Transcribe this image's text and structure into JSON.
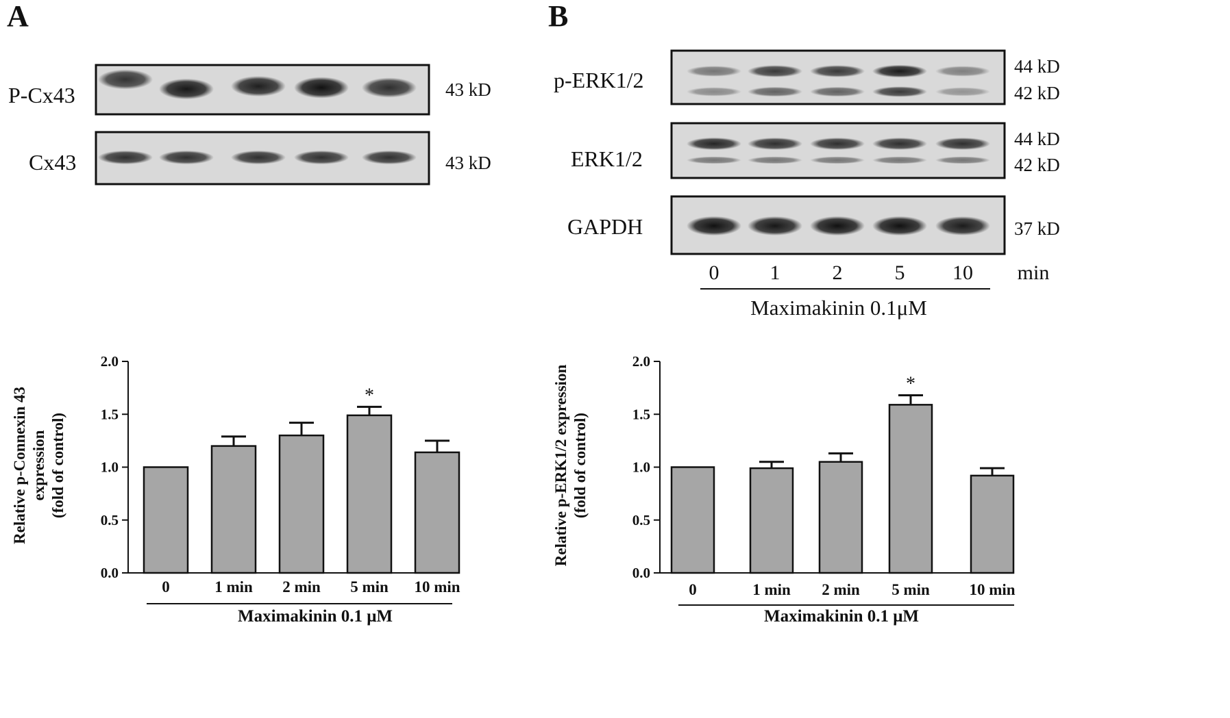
{
  "panels": [
    {
      "letter": "A",
      "blots": [
        {
          "label": "P-Cx43",
          "kd": [
            "43 kD"
          ],
          "bands": [
            [
              0.78,
              0.92,
              0.88,
              1.0,
              0.8
            ]
          ]
        },
        {
          "label": "Cx43",
          "kd": [
            "43 kD"
          ],
          "bands": [
            [
              0.8,
              0.8,
              0.8,
              0.8,
              0.8
            ]
          ]
        }
      ],
      "lane_labels": [],
      "lane_unit": "",
      "condition": ""
    },
    {
      "letter": "B",
      "blots": [
        {
          "label": "p-ERK1/2",
          "kd": [
            "44 kD",
            "42 kD"
          ],
          "bands": [
            [
              0.45,
              0.75,
              0.75,
              0.9,
              0.4
            ],
            [
              0.35,
              0.55,
              0.55,
              0.75,
              0.3
            ]
          ]
        },
        {
          "label": "ERK1/2",
          "kd": [
            "44 kD",
            "42 kD"
          ],
          "bands": [
            [
              0.85,
              0.8,
              0.8,
              0.8,
              0.8
            ],
            [
              0.45,
              0.45,
              0.45,
              0.45,
              0.45
            ]
          ]
        },
        {
          "label": "GAPDH",
          "kd": [
            "37 kD"
          ],
          "bands": [
            [
              0.95,
              0.92,
              0.95,
              0.95,
              0.9
            ]
          ]
        }
      ],
      "lane_labels": [
        "0",
        "1",
        "2",
        "5",
        "10"
      ],
      "lane_unit": "min",
      "condition": "Maximakinin 0.1μM"
    }
  ],
  "chart_data": [
    {
      "type": "bar",
      "categories": [
        "0",
        "1 min",
        "2 min",
        "5 min",
        "10 min"
      ],
      "values": [
        1.0,
        1.2,
        1.3,
        1.49,
        1.14
      ],
      "errors": [
        0.0,
        0.09,
        0.12,
        0.08,
        0.11
      ],
      "significance": [
        "",
        "",
        "",
        "*",
        ""
      ],
      "ylabel": [
        "Relative p-Connexin 43",
        "expression",
        "(fold of control)"
      ],
      "xlabel": "Maximakinin 0.1 μM",
      "ylim": [
        0.0,
        2.0
      ],
      "yticks": [
        "0.0",
        "0.5",
        "1.0",
        "1.5",
        "2.0"
      ],
      "bar_color": "#a6a6a6"
    },
    {
      "type": "bar",
      "categories": [
        "0",
        "1 min",
        "2 min",
        "5 min",
        "10 min"
      ],
      "values": [
        1.0,
        0.99,
        1.05,
        1.59,
        0.92
      ],
      "errors": [
        0.0,
        0.06,
        0.08,
        0.09,
        0.07
      ],
      "significance": [
        "",
        "",
        "",
        "*",
        ""
      ],
      "ylabel": [
        "Relative p-ERK1/2 expression",
        "(fold of control)"
      ],
      "xlabel": "Maximakinin 0.1 μM",
      "ylim": [
        0.0,
        2.0
      ],
      "yticks": [
        "0.0",
        "0.5",
        "1.0",
        "1.5",
        "2.0"
      ],
      "bar_color": "#a6a6a6"
    }
  ]
}
